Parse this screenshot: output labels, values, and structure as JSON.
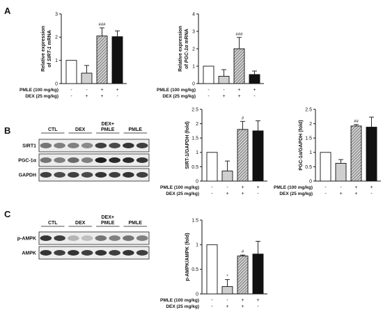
{
  "panels": [
    {
      "label": "A"
    },
    {
      "label": "B"
    },
    {
      "label": "C"
    }
  ],
  "condition_labels": [
    "PMLE (100 mg/kg)",
    "DEX (25 mg/kg)"
  ],
  "fills": {
    "CTL": "#ffffff",
    "DEX": "#cfcfcf",
    "DEX+PMLE": "hatched-gray",
    "PMLE": "#111111"
  },
  "blots": [
    {
      "panel": "B",
      "groups": [
        "CTL",
        "DEX",
        "DEX+\nPMLE",
        "PMLE"
      ],
      "bands": [
        "SIRT1",
        "PGC-1α",
        "GAPDH"
      ]
    },
    {
      "panel": "C",
      "groups": [
        "CTL",
        "DEX",
        "DEX+\nPMLE",
        "PMLE"
      ],
      "bands": [
        "p-AMPK",
        "AMPK"
      ]
    }
  ],
  "chart_data": [
    {
      "type": "bar",
      "panel": "A",
      "ylabel_parts": [
        "Relative expression",
        "of ",
        "SIRT-1",
        " mRNA"
      ],
      "ylim": [
        0,
        3
      ],
      "yticks": [
        0,
        1,
        2,
        3
      ],
      "categories": [
        "CTL",
        "DEX",
        "DEX+PMLE",
        "PMLE"
      ],
      "pmle": [
        "-",
        "-",
        "+",
        "+"
      ],
      "dex": [
        "-",
        "+",
        "+",
        "-"
      ],
      "values": [
        1.0,
        0.45,
        2.05,
        2.02
      ],
      "errors": [
        0,
        0.33,
        0.35,
        0.25
      ],
      "significance": [
        "",
        "",
        "###",
        ""
      ]
    },
    {
      "type": "bar",
      "panel": "A",
      "ylabel_parts": [
        "Relative expression",
        "of ",
        "PGC-1α",
        " mRNA"
      ],
      "ylim": [
        0,
        4
      ],
      "yticks": [
        0,
        1,
        2,
        3,
        4
      ],
      "categories": [
        "CTL",
        "DEX",
        "DEX+PMLE",
        "PMLE"
      ],
      "pmle": [
        "-",
        "-",
        "+",
        "+"
      ],
      "dex": [
        "-",
        "+",
        "+",
        "-"
      ],
      "values": [
        1.0,
        0.42,
        2.0,
        0.52
      ],
      "errors": [
        0,
        0.38,
        0.65,
        0.2
      ],
      "significance": [
        "",
        "",
        "###",
        ""
      ]
    },
    {
      "type": "bar",
      "panel": "B",
      "ylabel": "SIRT-1/GAPDH (fold)",
      "ylim": [
        0,
        2.5
      ],
      "yticks": [
        0.0,
        0.5,
        1.0,
        1.5,
        2.0,
        2.5
      ],
      "categories": [
        "CTL",
        "DEX",
        "DEX+PMLE",
        "PMLE"
      ],
      "pmle": [
        "-",
        "-",
        "+",
        "+"
      ],
      "dex": [
        "-",
        "+",
        "+",
        "-"
      ],
      "values": [
        1.0,
        0.35,
        1.8,
        1.75
      ],
      "errors": [
        0,
        0.35,
        0.28,
        0.35
      ],
      "significance": [
        "",
        "",
        "#",
        ""
      ]
    },
    {
      "type": "bar",
      "panel": "B",
      "ylabel": "PGC-1α/GAPDH (fold)",
      "ylim": [
        0,
        2.5
      ],
      "yticks": [
        0.0,
        0.5,
        1.0,
        1.5,
        2.0,
        2.5
      ],
      "categories": [
        "CTL",
        "DEX",
        "DEX+PMLE",
        "PMLE"
      ],
      "pmle": [
        "-",
        "-",
        "+",
        "+"
      ],
      "dex": [
        "-",
        "+",
        "+",
        "-"
      ],
      "values": [
        1.0,
        0.62,
        1.92,
        1.88
      ],
      "errors": [
        0,
        0.13,
        0.05,
        0.35
      ],
      "significance": [
        "",
        "",
        "##",
        ""
      ]
    },
    {
      "type": "bar",
      "panel": "C",
      "ylabel": "p-AMPK/AMPK (fold)",
      "ylim": [
        0,
        1.5
      ],
      "yticks": [
        0.0,
        0.5,
        1.0,
        1.5
      ],
      "categories": [
        "CTL",
        "DEX",
        "DEX+PMLE",
        "PMLE"
      ],
      "pmle": [
        "-",
        "-",
        "+",
        "+"
      ],
      "dex": [
        "-",
        "+",
        "+",
        "-"
      ],
      "values": [
        1.0,
        0.15,
        0.77,
        0.81
      ],
      "errors": [
        0,
        0.14,
        0.02,
        0.26
      ],
      "significance": [
        "",
        "*",
        "#",
        ""
      ]
    }
  ]
}
